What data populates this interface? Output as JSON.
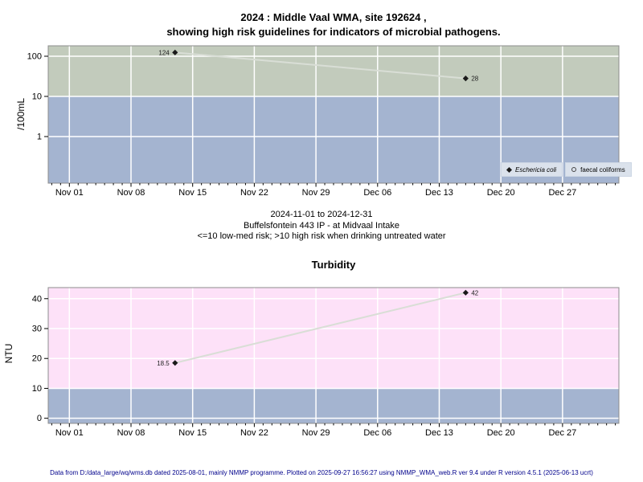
{
  "top_chart": {
    "title_line1": "2024 : Middle Vaal WMA, site 192624 ,",
    "title_line2": "showing high risk guidelines for indicators of microbial pathogens."
  },
  "caption": {
    "line1": "2024-11-01 to 2024-12-31",
    "line2": "Buffelsfontein 443 IP - at Midvaal Intake",
    "line3": "<=10 low-med risk; >10 high risk when drinking untreated water"
  },
  "footer": {
    "text": "Data from D:/data_large/wq/wms.db dated 2025-08-01, mainly NMMP programme. Plotted on 2025-09-27 16:56:27 using NMMP_WMA_web.R ver 9.4 under R version 4.5.1 (2025-06-13 ucrt)",
    "color": "#00008b"
  },
  "colors": {
    "microbial_high_risk_band": "#c2cbbc",
    "low_risk_band": "#a4b4d0",
    "turbidity_high_band": "#fde1f8",
    "gridline": "#ffffff",
    "plot_border": "#8c8c8c",
    "series_line": "#d9ded6",
    "marker": "#1a1a1a",
    "legend_bg": "#dbe2ec"
  },
  "x_axis": {
    "origin_date": "2024-11-01",
    "lim_days": [
      -2.4,
      62.4
    ],
    "major_tick_days": [
      0,
      7,
      14,
      21,
      28,
      35,
      42,
      49,
      56
    ],
    "tick_labels": [
      "Nov 01",
      "Nov 08",
      "Nov 15",
      "Nov 22",
      "Nov 29",
      "Dec 06",
      "Dec 13",
      "Dec 20",
      "Dec 27"
    ]
  },
  "chart_data": [
    {
      "type": "line",
      "title": "2024 : Middle Vaal WMA, site 192624 , showing high risk guidelines for indicators of microbial pathogens.",
      "ylabel": "/100mL",
      "yscale": "log10",
      "yticks": [
        1,
        10,
        100
      ],
      "ytick_labels": [
        "1",
        "10",
        "100"
      ],
      "ylim_log10": [
        -1.16,
        2.26
      ],
      "threshold": 10,
      "band_colors": {
        "above_threshold": "#c2cbbc",
        "below_threshold": "#a4b4d0"
      },
      "legend_position": "bottom-right",
      "series": [
        {
          "name": "Eschericia coli",
          "marker": "filled-diamond",
          "dates": [
            "2024-11-13",
            "2024-12-16"
          ],
          "values": [
            124,
            28
          ],
          "point_labels": [
            "124",
            "28"
          ]
        },
        {
          "name": "faecal coliforms",
          "marker": "open-circle",
          "dates": [],
          "values": [],
          "point_labels": []
        }
      ]
    },
    {
      "type": "line",
      "title": "Turbidity",
      "ylabel": "NTU",
      "yscale": "linear",
      "yticks": [
        0,
        10,
        20,
        30,
        40
      ],
      "ytick_labels": [
        "0",
        "10",
        "20",
        "30",
        "40"
      ],
      "ylim": [
        -1.7,
        43.7
      ],
      "threshold": 10,
      "band_colors": {
        "above_threshold": "#fde1f8",
        "below_threshold": "#a4b4d0"
      },
      "series": [
        {
          "name": "Turbidity",
          "marker": "filled-diamond",
          "dates": [
            "2024-11-13",
            "2024-12-16"
          ],
          "values": [
            18.5,
            42
          ],
          "point_labels": [
            "18.5",
            "42"
          ]
        }
      ]
    }
  ]
}
